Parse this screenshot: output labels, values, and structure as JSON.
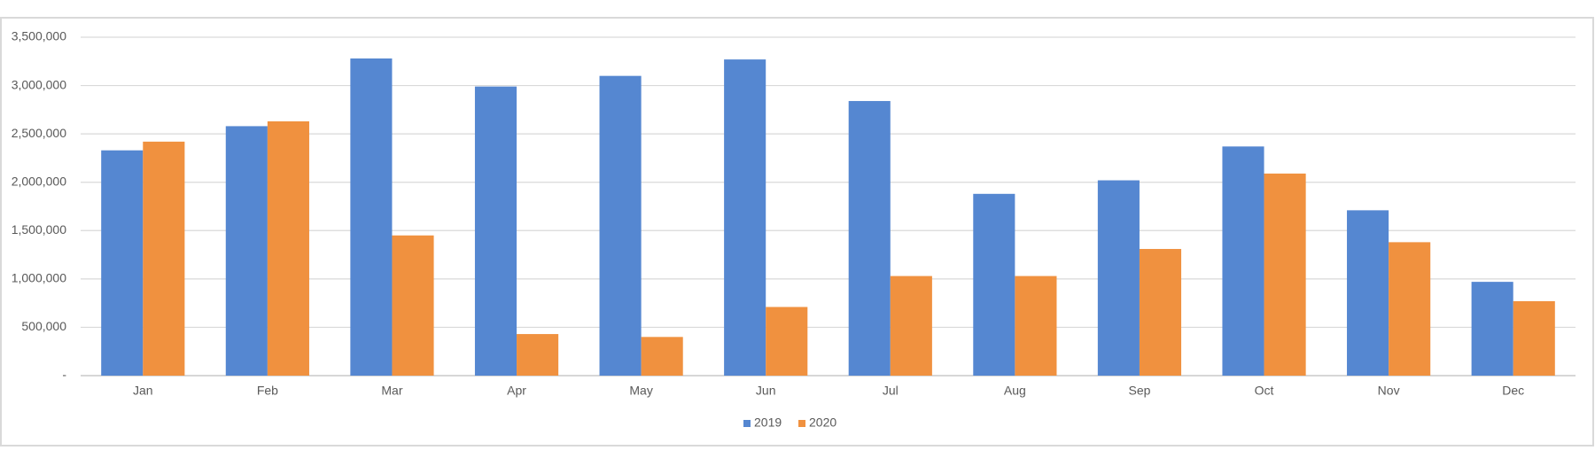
{
  "chart_data": {
    "type": "bar",
    "categories": [
      "Jan",
      "Feb",
      "Mar",
      "Apr",
      "May",
      "Jun",
      "Jul",
      "Aug",
      "Sep",
      "Oct",
      "Nov",
      "Dec"
    ],
    "series": [
      {
        "name": "2019",
        "color": "#5587d1",
        "values": [
          2330000,
          2580000,
          3280000,
          2990000,
          3100000,
          3270000,
          2840000,
          1880000,
          2020000,
          2370000,
          1710000,
          970000
        ]
      },
      {
        "name": "2020",
        "color": "#f0913f",
        "values": [
          2420000,
          2630000,
          1450000,
          430000,
          400000,
          710000,
          1030000,
          1030000,
          1310000,
          2090000,
          1380000,
          770000
        ]
      }
    ],
    "ylim": [
      0,
      3500000
    ],
    "yticks": [
      {
        "value": 0,
        "label": "-"
      },
      {
        "value": 500000,
        "label": "500,000"
      },
      {
        "value": 1000000,
        "label": "1,000,000"
      },
      {
        "value": 1500000,
        "label": "1,500,000"
      },
      {
        "value": 2000000,
        "label": "2,000,000"
      },
      {
        "value": 2500000,
        "label": "2,500,000"
      },
      {
        "value": 3000000,
        "label": "3,000,000"
      },
      {
        "value": 3500000,
        "label": "3,500,000"
      }
    ],
    "grid": true,
    "legend": "bottom"
  }
}
